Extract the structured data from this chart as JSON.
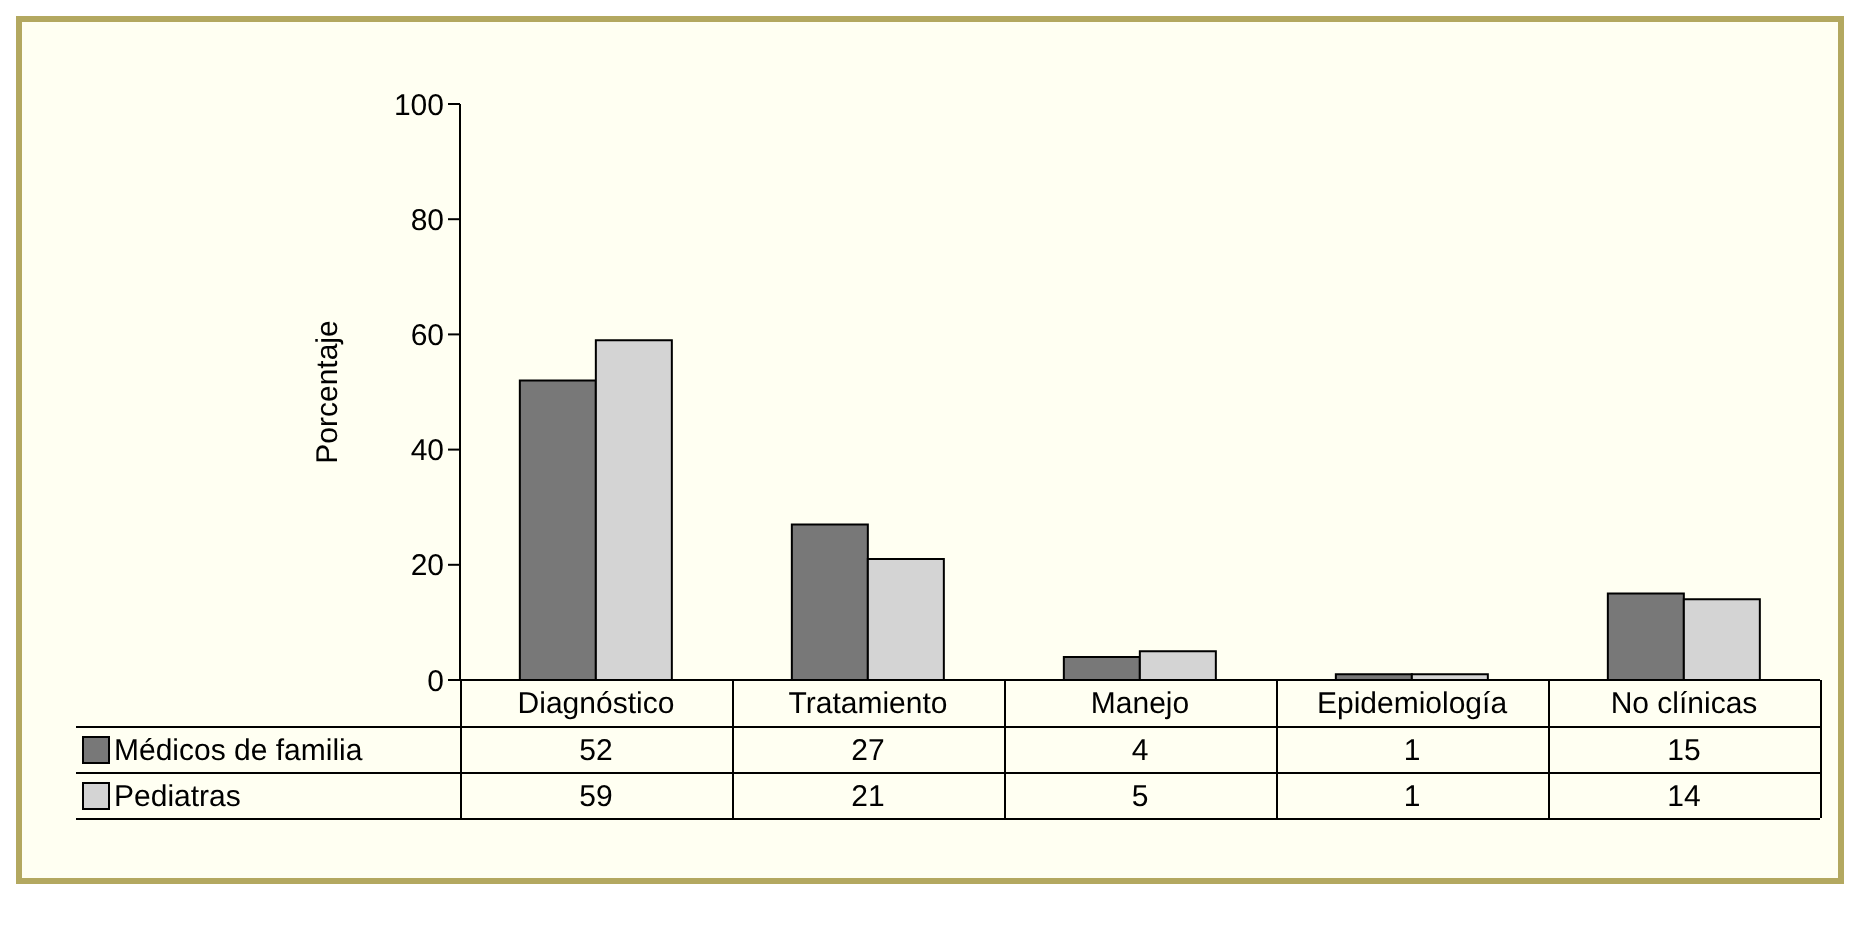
{
  "chart_data": {
    "type": "bar",
    "ylabel": "Porcentaje",
    "categories": [
      "Diagnóstico",
      "Tratamiento",
      "Manejo",
      "Epidemiología",
      "No clínicas"
    ],
    "series": [
      {
        "name": "Médicos de familia",
        "color": "#787878",
        "values": [
          52,
          27,
          4,
          1,
          15
        ]
      },
      {
        "name": "Pediatras",
        "color": "#d4d4d4",
        "values": [
          59,
          21,
          5,
          1,
          14
        ]
      }
    ],
    "ylim": [
      0,
      100
    ],
    "yticks": [
      0,
      20,
      40,
      60,
      80,
      100
    ],
    "grid": false,
    "legend": "bottom left",
    "data_labels": true
  }
}
